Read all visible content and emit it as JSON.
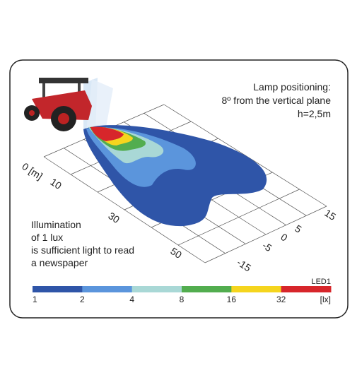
{
  "header": {
    "lines": [
      "Lamp positioning:",
      "8º from the vertical plane",
      "h=2,5m"
    ]
  },
  "distance_labels": [
    "0 [m]",
    "10",
    "30",
    "50"
  ],
  "lateral_labels": [
    "15",
    "5",
    "0",
    "-5",
    "-15"
  ],
  "note": {
    "lines": [
      "Illumination",
      "of 1 lux",
      "is sufficient light to read",
      "a newspaper"
    ]
  },
  "scale": {
    "name": "LED1",
    "labels": [
      "1",
      "2",
      "4",
      "8",
      "16",
      "32"
    ],
    "unit": "[lx]",
    "colors": [
      "#2f55a8",
      "#5b95dc",
      "#a9d8d6",
      "#52ad4f",
      "#f5d51e",
      "#d7262b"
    ]
  }
}
